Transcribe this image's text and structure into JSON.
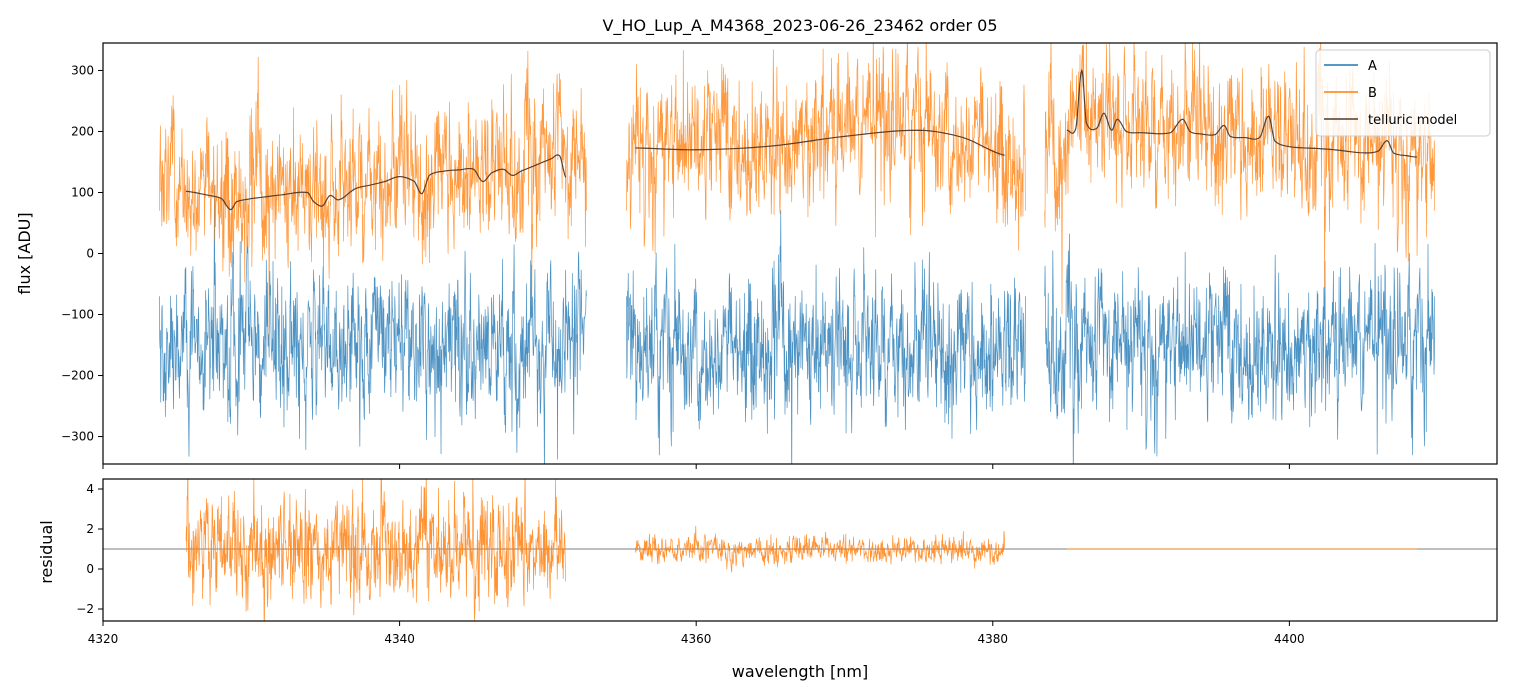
{
  "chart_data": [
    {
      "panel": "top",
      "type": "line",
      "title": "V_HO_Lup_A_M4368_2023-06-26_23462  order 05",
      "xlabel": "",
      "ylabel": "flux [ADU]",
      "xlim": [
        4320,
        4414
      ],
      "ylim": [
        -345,
        345
      ],
      "yticks": [
        -300,
        -200,
        -100,
        0,
        100,
        200,
        300
      ],
      "yticklabels": [
        "−300",
        "−200",
        "−100",
        "0",
        "100",
        "200",
        "300"
      ],
      "xticks": [
        4320,
        4340,
        4360,
        4380,
        4400
      ],
      "legend": {
        "position": "top-right",
        "entries": [
          {
            "label": "A",
            "color": "#1f77b4"
          },
          {
            "label": "B",
            "color": "#ff7f0e"
          },
          {
            "label": "telluric model",
            "color": "#4d3a2a"
          }
        ]
      },
      "series": [
        {
          "name": "A",
          "color": "#1f77b4",
          "segments": [
            [
              4323.8,
              4352.6
            ],
            [
              4355.3,
              4382.2
            ],
            [
              4383.5,
              4409.8
            ]
          ],
          "mean": -150,
          "noise_std": 70,
          "min_visible": -345,
          "max_visible": 60
        },
        {
          "name": "B",
          "color": "#ff7f0e",
          "segments": [
            [
              4323.8,
              4352.6
            ],
            [
              4355.3,
              4382.2
            ],
            [
              4383.5,
              4409.8
            ]
          ],
          "mean": 150,
          "noise_std": 70,
          "min_visible": -30,
          "max_visible": 345
        },
        {
          "name": "telluric model",
          "color": "#4d3a2a",
          "segments": [
            {
              "x": [
                4325.6,
                4327.0,
                4328.0,
                4328.6,
                4329.0,
                4330.0,
                4332.0,
                4333.8,
                4334.2,
                4334.8,
                4335.3,
                4335.9,
                4337.0,
                4338.0,
                4339.0,
                4340.0,
                4341.0,
                4341.5,
                4342.0,
                4343.0,
                4344.0,
                4345.0,
                4345.6,
                4346.2,
                4347.0,
                4347.6,
                4348.2,
                4348.7,
                4349.2,
                4349.7,
                4350.2,
                4350.8,
                4351.2
              ],
              "y": [
                102,
                96,
                90,
                72,
                85,
                90,
                96,
                100,
                85,
                78,
                95,
                88,
                106,
                112,
                118,
                126,
                118,
                98,
                128,
                135,
                137,
                138,
                118,
                132,
                138,
                128,
                135,
                140,
                145,
                150,
                155,
                160,
                125
              ]
            },
            {
              "x": [
                4355.9,
                4360.0,
                4365.0,
                4370.0,
                4375.0,
                4378.0,
                4380.8
              ],
              "y": [
                173,
                170,
                176,
                192,
                202,
                190,
                161
              ]
            },
            {
              "x": [
                4385.0,
                4385.6,
                4386.0,
                4386.3,
                4387.0,
                4387.5,
                4388.0,
                4388.4,
                4389.0,
                4390.0,
                4392.0,
                4392.8,
                4393.3,
                4394.0,
                4395.0,
                4395.6,
                4396.0,
                4397.0,
                4398.0,
                4398.6,
                4399.0,
                4400.0,
                4402.0,
                4403.0,
                4405.0,
                4406.0,
                4406.6,
                4407.0,
                4408.0,
                4408.6
              ],
              "y": [
                202,
                205,
                300,
                215,
                205,
                230,
                202,
                220,
                200,
                198,
                198,
                220,
                200,
                196,
                195,
                210,
                192,
                190,
                190,
                225,
                185,
                175,
                172,
                170,
                165,
                168,
                185,
                165,
                160,
                158
              ]
            }
          ]
        }
      ]
    },
    {
      "panel": "bottom",
      "type": "line",
      "title": "",
      "xlabel": "wavelength [nm]",
      "ylabel": "residual",
      "xlim": [
        4320,
        4414
      ],
      "ylim": [
        -2.6,
        4.5
      ],
      "yticks": [
        -2,
        0,
        2,
        4
      ],
      "yticklabels": [
        "−2",
        "0",
        "2",
        "4"
      ],
      "xticks": [
        4320,
        4340,
        4360,
        4380,
        4400
      ],
      "xticklabels": [
        "4320",
        "4340",
        "4360",
        "4380",
        "4400"
      ],
      "reference_line": 1,
      "series": [
        {
          "name": "residual",
          "color": "#ff7f0e",
          "segments": [
            {
              "x0": 4325.6,
              "x1": 4351.2,
              "mean": 1.0,
              "noise_std": 1.8
            },
            {
              "x0": 4355.9,
              "x1": 4380.8,
              "mean": 0.95,
              "noise_std": 0.45
            },
            {
              "x0": 4385.0,
              "x1": 4408.6,
              "mean": 1.0,
              "noise_std": 0.0
            }
          ]
        }
      ]
    }
  ]
}
